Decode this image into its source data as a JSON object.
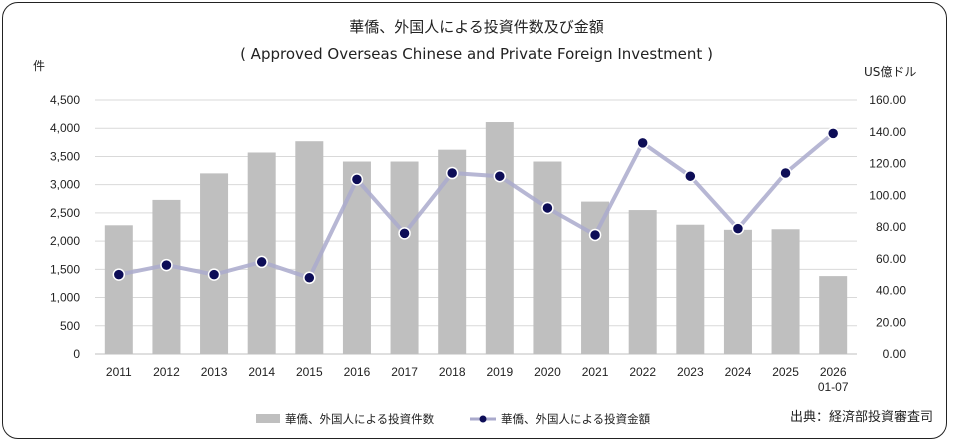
{
  "chart_data": {
    "type": "bar",
    "title": "華僑、外国人による投資件数及び金額",
    "subtitle": "( Approved Overseas Chinese and Private Foreign Investment )",
    "left_unit": "件",
    "right_unit": "US億ドル",
    "source": "出典：経済部投資審査司",
    "categories": [
      "2011",
      "2012",
      "2013",
      "2014",
      "2015",
      "2016",
      "2017",
      "2018",
      "2019",
      "2020",
      "2021",
      "2022",
      "2023",
      "2024",
      "2025",
      "2026\n01-07"
    ],
    "left_axis": {
      "ylim": [
        0,
        4500
      ],
      "ticks": [
        0,
        500,
        1000,
        1500,
        2000,
        2500,
        3000,
        3500,
        4000,
        4500
      ],
      "tick_labels": [
        "0",
        "500",
        "1,000",
        "1,500",
        "2,000",
        "2,500",
        "3,000",
        "3,500",
        "4,000",
        "4,500"
      ]
    },
    "right_axis": {
      "ylim": [
        0,
        160
      ],
      "ticks": [
        0,
        20,
        40,
        60,
        80,
        100,
        120,
        140,
        160
      ],
      "tick_labels": [
        "0.00",
        "20.00",
        "40.00",
        "60.00",
        "80.00",
        "100.00",
        "120.00",
        "140.00",
        "160.00"
      ]
    },
    "grid": true,
    "legend_position": "bottom",
    "series": [
      {
        "name": "華僑、外国人による投資件数",
        "type": "bar",
        "axis": "left",
        "color": "#bfbfbf",
        "values": [
          2280,
          2730,
          3200,
          3570,
          3770,
          3410,
          3410,
          3620,
          4110,
          3410,
          2700,
          2550,
          2290,
          2200,
          2210,
          1380
        ]
      },
      {
        "name": "華僑、外国人による投資金額",
        "type": "line",
        "axis": "right",
        "color": "#aaaacc",
        "marker_color": "#0d0d57",
        "values": [
          50.0,
          56.0,
          50.0,
          58.0,
          48.0,
          110.0,
          76.0,
          114.0,
          112.0,
          92.0,
          75.0,
          133.0,
          112.0,
          79.0,
          114.0,
          139.0
        ]
      }
    ]
  }
}
